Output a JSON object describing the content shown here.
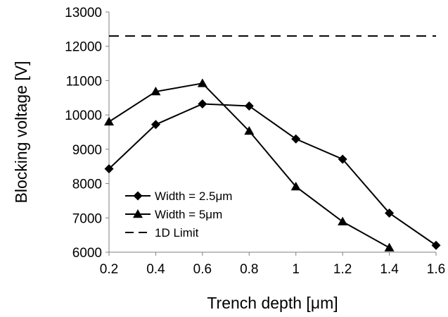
{
  "chart_data": {
    "type": "line",
    "xlabel": "Trench depth [μm]",
    "ylabel": "Blocking voltage [V]",
    "xlim": [
      0.2,
      1.6
    ],
    "ylim": [
      6000,
      13000
    ],
    "x_ticks": [
      "0.2",
      "0.4",
      "0.6",
      "0.8",
      "1",
      "1.2",
      "1.4",
      "1.6"
    ],
    "y_ticks": [
      "6000",
      "7000",
      "8000",
      "9000",
      "10000",
      "11000",
      "12000",
      "13000"
    ],
    "grid": false,
    "legend_position": "bottom-left",
    "series": [
      {
        "name": "Width = 2.5μm",
        "marker": "diamond",
        "style": "solid",
        "color": "#000000",
        "x": [
          0.2,
          0.4,
          0.6,
          0.8,
          1.0,
          1.2,
          1.4,
          1.6
        ],
        "y": [
          8430,
          9720,
          10320,
          10260,
          9300,
          8710,
          7140,
          6200
        ]
      },
      {
        "name": "Width = 5μm",
        "marker": "triangle",
        "style": "solid",
        "color": "#000000",
        "x": [
          0.2,
          0.4,
          0.6,
          0.8,
          1.0,
          1.2,
          1.4
        ],
        "y": [
          9800,
          10680,
          10920,
          9530,
          7910,
          6890,
          6130
        ]
      },
      {
        "name": "1D Limit",
        "marker": "none",
        "style": "dashed",
        "color": "#000000",
        "x": [
          0.2,
          1.6
        ],
        "y": [
          12300,
          12300
        ]
      }
    ]
  }
}
